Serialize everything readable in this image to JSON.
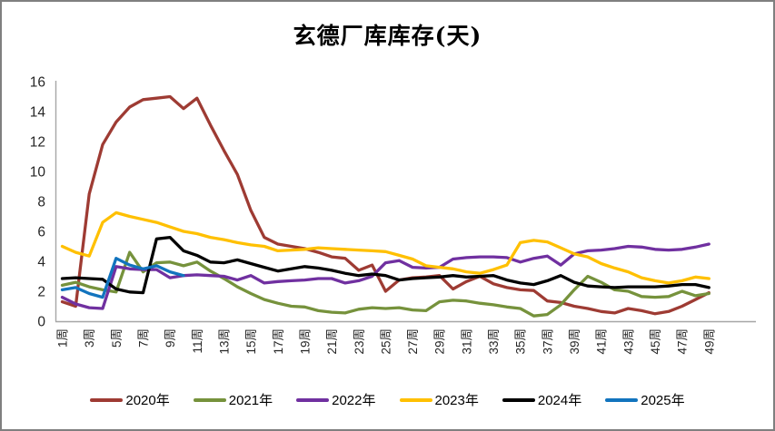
{
  "chart_data": {
    "type": "line",
    "title": "玄德厂库库存(天)",
    "x_label_unit": "周",
    "x_tick_labels": [
      "1周",
      "3周",
      "5周",
      "7周",
      "9周",
      "11周",
      "13周",
      "15周",
      "17周",
      "19周",
      "21周",
      "23周",
      "25周",
      "27周",
      "29周",
      "31周",
      "33周",
      "35周",
      "37周",
      "39周",
      "41周",
      "43周",
      "45周",
      "47周",
      "49周"
    ],
    "n_points": 49,
    "ylim": [
      0,
      16
    ],
    "y_ticks": [
      0,
      2,
      4,
      6,
      8,
      10,
      12,
      14,
      16
    ],
    "grid": false,
    "legend_position": "bottom",
    "axis_color": "#a6a6a6",
    "tick_text_color": "#262626",
    "series": [
      {
        "name": "2020年",
        "color": "#9e3b33",
        "values": [
          1.3,
          1.0,
          8.5,
          11.8,
          13.3,
          14.3,
          14.8,
          14.9,
          15.0,
          14.2,
          14.9,
          13.1,
          11.4,
          9.8,
          7.4,
          5.6,
          5.15,
          5.0,
          4.85,
          4.6,
          4.3,
          4.2,
          3.4,
          3.75,
          2.0,
          2.75,
          2.9,
          2.95,
          3.05,
          2.15,
          2.65,
          3.0,
          2.5,
          2.25,
          2.1,
          2.05,
          1.35,
          1.25,
          1.0,
          0.85,
          0.65,
          0.55,
          0.85,
          0.7,
          0.5,
          0.65,
          1.0,
          1.45,
          1.9
        ]
      },
      {
        "name": "2021年",
        "color": "#76923c",
        "values": [
          2.4,
          2.6,
          2.3,
          2.1,
          1.95,
          4.6,
          3.3,
          3.9,
          3.95,
          3.7,
          3.95,
          3.35,
          2.85,
          2.3,
          1.85,
          1.45,
          1.2,
          1.0,
          0.95,
          0.7,
          0.6,
          0.55,
          0.8,
          0.9,
          0.85,
          0.9,
          0.75,
          0.7,
          1.3,
          1.4,
          1.35,
          1.2,
          1.1,
          0.95,
          0.85,
          0.35,
          0.45,
          1.1,
          2.1,
          3.0,
          2.6,
          2.1,
          2.0,
          1.65,
          1.6,
          1.65,
          2.0,
          1.7,
          1.85
        ]
      },
      {
        "name": "2022年",
        "color": "#7030a0",
        "values": [
          1.6,
          1.15,
          0.9,
          0.85,
          3.65,
          3.5,
          3.45,
          3.45,
          2.9,
          3.05,
          3.1,
          3.05,
          3.0,
          2.75,
          3.05,
          2.55,
          2.65,
          2.7,
          2.75,
          2.85,
          2.85,
          2.55,
          2.7,
          3.0,
          3.9,
          4.05,
          3.6,
          3.55,
          3.6,
          4.15,
          4.25,
          4.3,
          4.3,
          4.25,
          3.95,
          4.2,
          4.35,
          3.75,
          4.5,
          4.7,
          4.75,
          4.85,
          5.0,
          4.95,
          4.8,
          4.75,
          4.8,
          4.95,
          5.15
        ]
      },
      {
        "name": "2023年",
        "color": "#ffc000",
        "values": [
          5.0,
          4.6,
          4.35,
          6.6,
          7.25,
          7.0,
          6.8,
          6.6,
          6.3,
          6.0,
          5.85,
          5.6,
          5.45,
          5.25,
          5.1,
          5.0,
          4.7,
          4.75,
          4.8,
          4.9,
          4.85,
          4.8,
          4.75,
          4.7,
          4.65,
          4.4,
          4.15,
          3.7,
          3.6,
          3.5,
          3.3,
          3.2,
          3.45,
          3.75,
          5.25,
          5.4,
          5.3,
          4.9,
          4.5,
          4.3,
          3.85,
          3.55,
          3.3,
          2.9,
          2.7,
          2.55,
          2.7,
          2.95,
          2.85
        ]
      },
      {
        "name": "2024年",
        "color": "#000000",
        "values": [
          2.85,
          2.9,
          2.85,
          2.8,
          2.15,
          1.95,
          1.9,
          5.5,
          5.6,
          4.7,
          4.4,
          3.95,
          3.9,
          4.1,
          3.85,
          3.6,
          3.35,
          3.5,
          3.65,
          3.55,
          3.4,
          3.2,
          3.05,
          3.15,
          3.05,
          2.75,
          2.85,
          2.9,
          2.95,
          3.05,
          2.95,
          3.0,
          3.05,
          2.75,
          2.55,
          2.45,
          2.7,
          3.05,
          2.6,
          2.35,
          2.3,
          2.25,
          2.3,
          2.3,
          2.3,
          2.35,
          2.45,
          2.45,
          2.25
        ]
      },
      {
        "name": "2025年",
        "color": "#1274be",
        "values": [
          2.1,
          2.25,
          1.85,
          1.6,
          4.2,
          3.75,
          3.5,
          3.7,
          3.3,
          3.05
        ]
      }
    ]
  }
}
